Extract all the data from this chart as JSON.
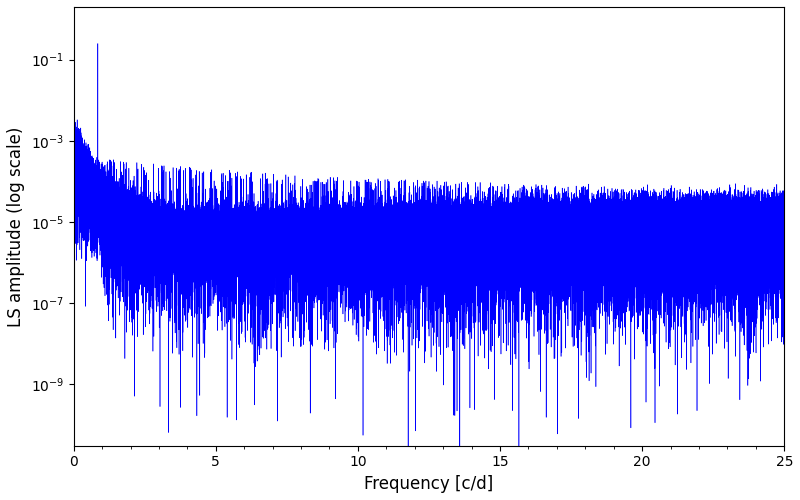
{
  "title": "",
  "xlabel": "Frequency [c/d]",
  "ylabel": "LS amplitude (log scale)",
  "line_color": "#0000ff",
  "xlim": [
    0,
    25
  ],
  "ylim_bottom": 3e-11,
  "ylim_top": 2.0,
  "freq_max": 25.0,
  "n_points": 100000,
  "seed": 7,
  "peak_freq": 0.85,
  "peak_amplitude": 0.25,
  "background_color": "#ffffff",
  "figsize": [
    8.0,
    5.0
  ],
  "dpi": 100
}
